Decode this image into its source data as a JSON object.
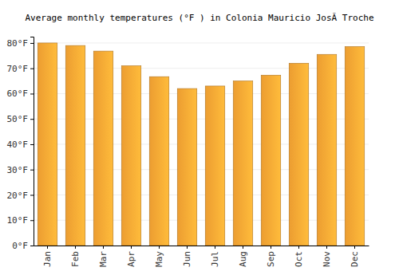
{
  "chart_data": {
    "type": "bar",
    "title": "Average monthly temperatures (°F ) in Colonia Mauricio JosÃ Troche",
    "categories": [
      "Jan",
      "Feb",
      "Mar",
      "Apr",
      "May",
      "Jun",
      "Jul",
      "Aug",
      "Sep",
      "Oct",
      "Nov",
      "Dec"
    ],
    "values": [
      80,
      79,
      76.8,
      71,
      66.7,
      62,
      63,
      65,
      67.3,
      72,
      75.5,
      78.6
    ],
    "color": "#f9a634",
    "ylim": [
      0,
      82.5
    ],
    "yticks": [
      {
        "value": 0,
        "label": "0°F"
      },
      {
        "value": 10,
        "label": "10°F"
      },
      {
        "value": 20,
        "label": "20°F"
      },
      {
        "value": 30,
        "label": "30°F"
      },
      {
        "value": 40,
        "label": "40°F"
      },
      {
        "value": 50,
        "label": "50°F"
      },
      {
        "value": 60,
        "label": "60°F"
      },
      {
        "value": 70,
        "label": "70°F"
      },
      {
        "value": 80,
        "label": "80°F"
      }
    ],
    "grid": true
  }
}
